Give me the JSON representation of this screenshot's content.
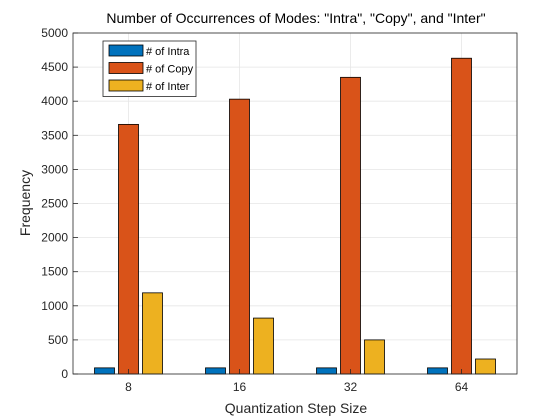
{
  "chart_data": {
    "type": "bar",
    "title": "Number of Occurrences of Modes: \"Intra\", \"Copy\", and \"Inter\"",
    "xlabel": "Quantization Step Size",
    "ylabel": "Frequency",
    "categories": [
      "8",
      "16",
      "32",
      "64"
    ],
    "ylim": [
      0,
      5000
    ],
    "yticks": [
      0,
      500,
      1000,
      1500,
      2000,
      2500,
      3000,
      3500,
      4000,
      4500,
      5000
    ],
    "grid": true,
    "legend_position": "top-left",
    "series": [
      {
        "name": "# of Intra",
        "color": "#0072BD",
        "values": [
          90,
          90,
          90,
          90
        ]
      },
      {
        "name": "# of Copy",
        "color": "#D95319",
        "values": [
          3660,
          4030,
          4350,
          4630
        ]
      },
      {
        "name": "# of Inter",
        "color": "#EDB120",
        "values": [
          1190,
          820,
          500,
          220
        ]
      }
    ]
  }
}
